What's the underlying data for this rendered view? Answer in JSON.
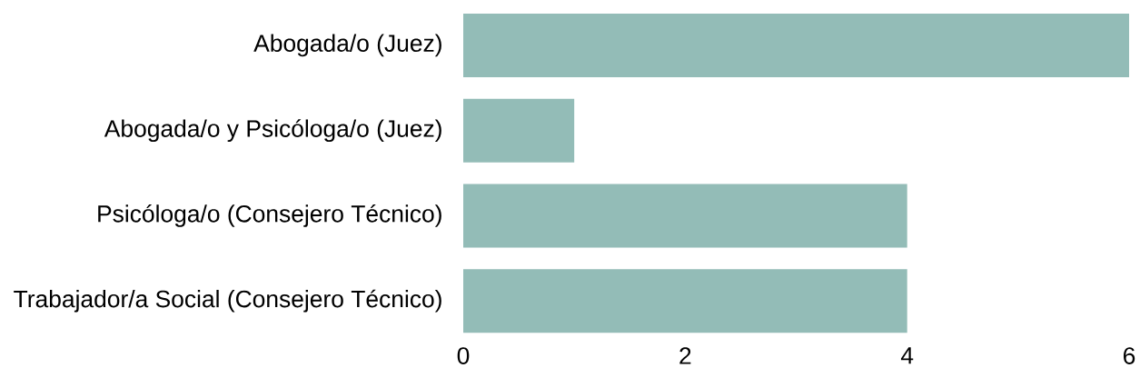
{
  "chart_data": {
    "type": "bar",
    "orientation": "horizontal",
    "categories": [
      "Abogada/o (Juez)",
      "Abogada/o y Psicóloga/o (Juez)",
      "Psicóloga/o (Consejero Técnico)",
      "Trabajador/a Social (Consejero Técnico)"
    ],
    "values": [
      6,
      1,
      4,
      4
    ],
    "color": "#93bcb7",
    "xlim": [
      0,
      6
    ],
    "xticks": [
      0,
      2,
      4,
      6
    ],
    "grid": false
  }
}
